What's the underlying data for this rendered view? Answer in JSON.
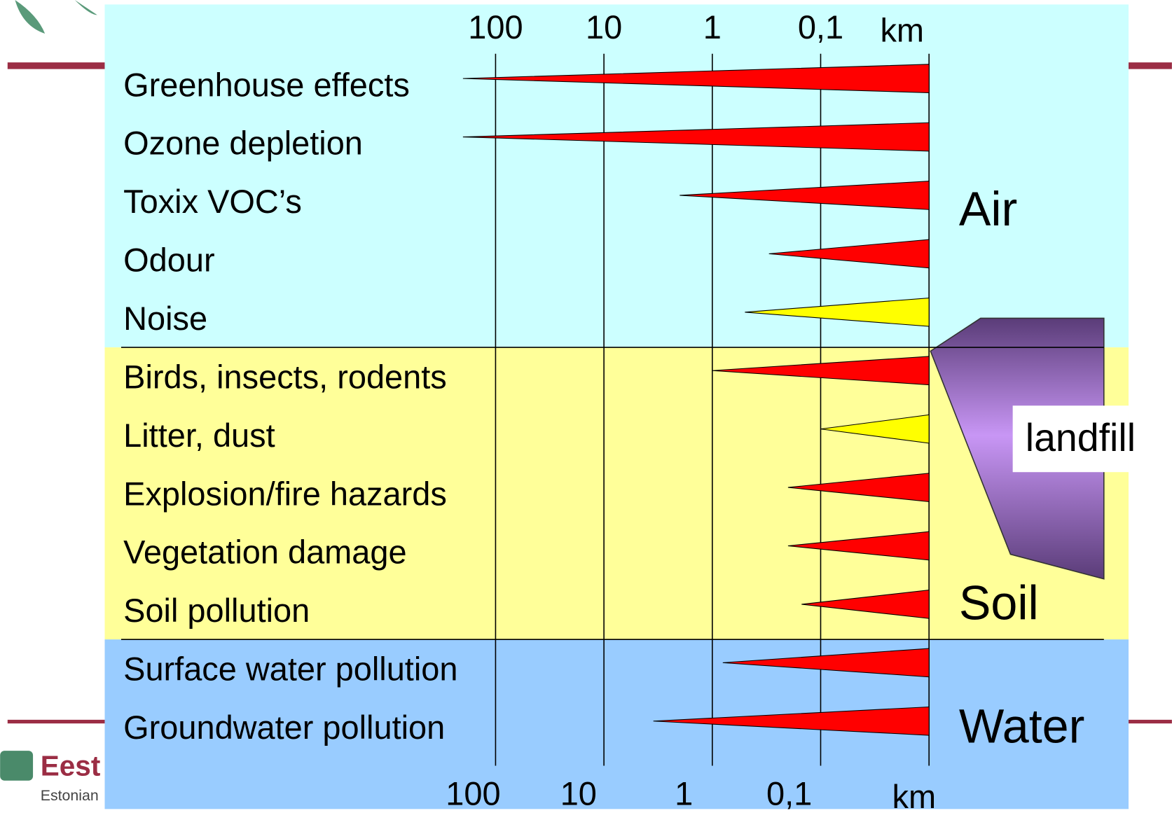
{
  "chart_data": {
    "type": "wedge",
    "log_x": true,
    "xlim": [
      1000,
      0.01
    ],
    "xticks": [
      100,
      10,
      1,
      {
        "value": 0.1,
        "label": "0,1"
      }
    ],
    "unit": "km",
    "groups": [
      {
        "name": "Air",
        "color": "#ccffff",
        "categories": [
          "Greenhouse effects",
          "Ozone depletion",
          "Toxix VOC’s",
          "Odour",
          "Noise"
        ],
        "values": [
          200,
          200,
          2,
          0.3,
          0.5
        ],
        "colors": [
          "#ff0000",
          "#ff0000",
          "#ff0000",
          "#ff0000",
          "#ffff00"
        ]
      },
      {
        "name": "Soil",
        "color": "#ffff99",
        "categories": [
          "Birds, insects, rodents",
          "Litter, dust",
          "Explosion/fire hazards",
          "Vegetation damage",
          "Soil pollution"
        ],
        "values": [
          1,
          0.1,
          0.2,
          0.2,
          0.15
        ],
        "colors": [
          "#ff0000",
          "#ffff00",
          "#ff0000",
          "#ff0000",
          "#ff0000"
        ]
      },
      {
        "name": "Water",
        "color": "#99ccff",
        "categories": [
          "Surface water pollution",
          "Groundwater pollution"
        ],
        "values": [
          0.8,
          3.5
        ],
        "colors": [
          "#ff0000",
          "#ff0000"
        ]
      }
    ],
    "source_label": "landfill",
    "logo": {
      "name": "Eest",
      "subtitle": "Estonian"
    }
  }
}
